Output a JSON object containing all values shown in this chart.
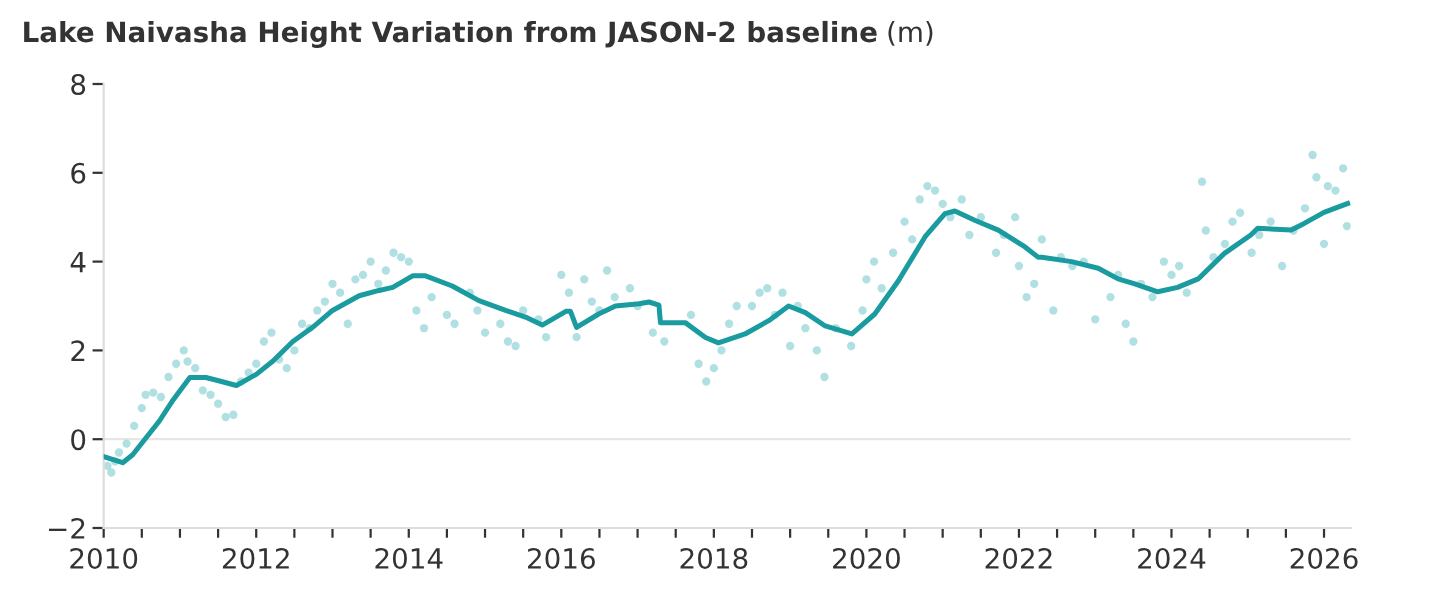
{
  "chart_data": {
    "type": "scatter",
    "title": "Lake Naivasha Height Variation from JASON-2 baseline",
    "ylabel": "(m)",
    "series": [
      {
        "color": "#8fd3d6",
        "marker": "circle",
        "x": [
          2010.05,
          2010.1,
          2010.15,
          2010.2,
          2010.3,
          2010.4,
          2010.5,
          2010.55,
          2010.65,
          2010.75,
          2010.85,
          2010.95,
          2011.05,
          2011.1,
          2011.2,
          2011.3,
          2011.4,
          2011.5,
          2011.6,
          2011.7,
          2011.8,
          2011.9,
          2012.0,
          2012.1,
          2012.2,
          2012.3,
          2012.4,
          2012.5,
          2012.6,
          2012.7,
          2012.8,
          2012.9,
          2013.0,
          2013.1,
          2013.2,
          2013.3,
          2013.4,
          2013.5,
          2013.6,
          2013.7,
          2013.8,
          2013.9,
          2014.0,
          2014.1,
          2014.2,
          2014.3,
          2014.5,
          2014.6,
          2014.8,
          2014.9,
          2015.0,
          2015.2,
          2015.3,
          2015.4,
          2015.5,
          2015.7,
          2015.8,
          2016.0,
          2016.1,
          2016.2,
          2016.3,
          2016.4,
          2016.5,
          2016.6,
          2016.7,
          2016.9,
          2017.0,
          2017.2,
          2017.35,
          2017.7,
          2017.8,
          2017.9,
          2018.0,
          2018.1,
          2018.2,
          2018.3,
          2018.5,
          2018.6,
          2018.7,
          2018.8,
          2018.9,
          2019.0,
          2019.1,
          2019.2,
          2019.35,
          2019.45,
          2019.6,
          2019.8,
          2019.95,
          2020.0,
          2020.1,
          2020.2,
          2020.35,
          2020.5,
          2020.6,
          2020.7,
          2020.8,
          2020.9,
          2021.0,
          2021.1,
          2021.25,
          2021.35,
          2021.5,
          2021.7,
          2021.8,
          2021.95,
          2022.0,
          2022.1,
          2022.2,
          2022.3,
          2022.45,
          2022.55,
          2022.7,
          2022.85,
          2023.0,
          2023.2,
          2023.3,
          2023.4,
          2023.5,
          2023.6,
          2023.75,
          2023.9,
          2024.0,
          2024.1,
          2024.2,
          2024.4,
          2024.45,
          2024.55,
          2024.7,
          2024.8,
          2024.9,
          2025.05,
          2025.15,
          2025.3,
          2025.45,
          2025.6,
          2025.75,
          2025.85,
          2025.9,
          2026.0,
          2026.05,
          2026.15,
          2026.25,
          2026.3
        ],
        "values": [
          -0.6,
          -0.75,
          -0.5,
          -0.3,
          -0.1,
          0.3,
          0.7,
          1.0,
          1.05,
          0.95,
          1.4,
          1.7,
          2.0,
          1.75,
          1.6,
          1.1,
          1.0,
          0.8,
          0.5,
          0.55,
          1.3,
          1.5,
          1.7,
          2.2,
          2.4,
          1.8,
          1.6,
          2.0,
          2.6,
          2.5,
          2.9,
          3.1,
          3.5,
          3.3,
          2.6,
          3.6,
          3.7,
          4.0,
          3.5,
          3.8,
          4.2,
          4.1,
          4.0,
          2.9,
          2.5,
          3.2,
          2.8,
          2.6,
          3.3,
          2.9,
          2.4,
          2.6,
          2.2,
          2.1,
          2.9,
          2.7,
          2.3,
          3.7,
          3.3,
          2.3,
          3.6,
          3.1,
          2.9,
          3.8,
          3.2,
          3.4,
          3.0,
          2.4,
          2.2,
          2.8,
          1.7,
          1.3,
          1.6,
          2.0,
          2.6,
          3.0,
          3.0,
          3.3,
          3.4,
          2.8,
          3.3,
          2.1,
          3.0,
          2.5,
          2.0,
          1.4,
          2.5,
          2.1,
          2.9,
          3.6,
          4.0,
          3.4,
          4.2,
          4.9,
          4.5,
          5.4,
          5.7,
          5.6,
          5.3,
          5.0,
          5.4,
          4.6,
          5.0,
          4.2,
          4.6,
          5.0,
          3.9,
          3.2,
          3.5,
          4.5,
          2.9,
          4.1,
          3.9,
          4.0,
          2.7,
          3.2,
          3.7,
          2.6,
          2.2,
          3.5,
          3.2,
          4.0,
          3.7,
          3.9,
          3.3,
          5.8,
          4.7,
          4.1,
          4.4,
          4.9,
          5.1,
          4.2,
          4.6,
          4.9,
          3.9,
          4.7,
          5.2,
          6.4,
          5.9,
          4.4,
          5.7,
          5.6,
          6.1,
          4.8
        ]
      },
      {
        "type": "line",
        "color": "#1a9ba0",
        "marker": "none",
        "line_style": "solid",
        "x": [
          2010.0,
          2010.25,
          2010.38,
          2010.73,
          2010.9,
          2011.13,
          2011.34,
          2011.52,
          2011.74,
          2012.0,
          2012.22,
          2012.48,
          2012.74,
          2013.0,
          2013.35,
          2013.61,
          2013.79,
          2014.05,
          2014.22,
          2014.57,
          2014.92,
          2015.27,
          2015.53,
          2015.75,
          2016.06,
          2016.12,
          2016.2,
          2016.49,
          2016.71,
          2017.02,
          2017.15,
          2017.28,
          2017.3,
          2017.63,
          2017.89,
          2018.06,
          2018.41,
          2018.72,
          2018.98,
          2019.2,
          2019.46,
          2019.81,
          2020.11,
          2020.42,
          2020.77,
          2021.03,
          2021.16,
          2021.42,
          2021.73,
          2022.08,
          2022.25,
          2022.3,
          2022.69,
          2023.04,
          2023.3,
          2023.52,
          2023.82,
          2024.08,
          2024.35,
          2024.69,
          2025.04,
          2025.13,
          2025.57,
          2025.74,
          2026.0,
          2026.31
        ],
        "values": [
          -0.39,
          -0.53,
          -0.35,
          0.41,
          0.86,
          1.39,
          1.39,
          1.31,
          1.21,
          1.46,
          1.76,
          2.2,
          2.52,
          2.9,
          3.23,
          3.35,
          3.42,
          3.68,
          3.68,
          3.45,
          3.12,
          2.9,
          2.75,
          2.57,
          2.88,
          2.88,
          2.52,
          2.82,
          3.0,
          3.05,
          3.09,
          3.02,
          2.62,
          2.62,
          2.29,
          2.17,
          2.37,
          2.67,
          3.0,
          2.85,
          2.55,
          2.37,
          2.82,
          3.57,
          4.56,
          5.08,
          5.14,
          4.93,
          4.71,
          4.33,
          4.1,
          4.1,
          4.0,
          3.85,
          3.61,
          3.5,
          3.32,
          3.42,
          3.61,
          4.18,
          4.6,
          4.75,
          4.71,
          4.86,
          5.11,
          5.31
        ]
      }
    ],
    "xlim": [
      2010,
      2026.35
    ],
    "ylim": [
      -2,
      8
    ],
    "xticks": [
      2010,
      {
        "value": 2010.5,
        "label": null
      },
      {
        "value": 2011,
        "label": null
      },
      {
        "value": 2011.5,
        "label": null
      },
      2012,
      {
        "value": 2012.5,
        "label": null
      },
      {
        "value": 2013,
        "label": null
      },
      {
        "value": 2013.5,
        "label": null
      },
      2014,
      {
        "value": 2014.5,
        "label": null
      },
      {
        "value": 2015,
        "label": null
      },
      {
        "value": 2015.5,
        "label": null
      },
      2016,
      {
        "value": 2016.5,
        "label": null
      },
      {
        "value": 2017,
        "label": null
      },
      {
        "value": 2017.5,
        "label": null
      },
      2018,
      {
        "value": 2018.5,
        "label": null
      },
      {
        "value": 2019,
        "label": null
      },
      {
        "value": 2019.5,
        "label": null
      },
      2020,
      {
        "value": 2020.5,
        "label": null
      },
      {
        "value": 2021,
        "label": null
      },
      {
        "value": 2021.5,
        "label": null
      },
      2022,
      {
        "value": 2022.5,
        "label": null
      },
      {
        "value": 2023,
        "label": null
      },
      {
        "value": 2023.5,
        "label": null
      },
      2024,
      {
        "value": 2024.5,
        "label": null
      },
      {
        "value": 2025,
        "label": null
      },
      {
        "value": 2025.5,
        "label": null
      },
      2026
    ],
    "yticks": [
      {
        "value": -2,
        "label": "−2"
      },
      0,
      2,
      4,
      6,
      8
    ],
    "ref_lines": [
      {
        "axis": "y",
        "value": 0,
        "color": "#e6e6e6"
      }
    ],
    "grid": false,
    "legend": false
  }
}
